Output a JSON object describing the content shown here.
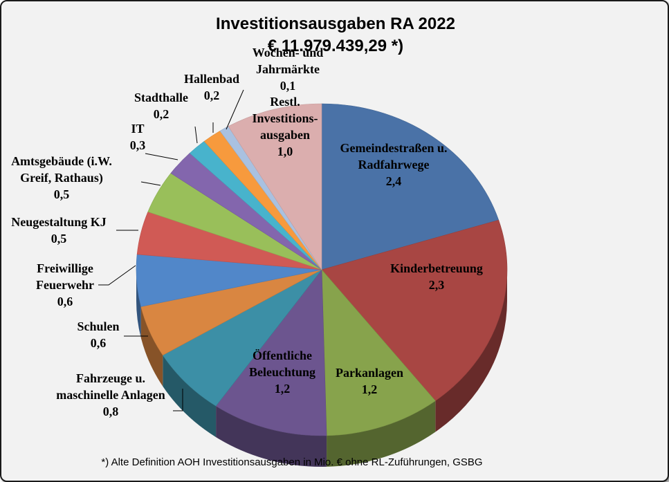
{
  "chart_data": {
    "type": "pie",
    "title": "Investitionsausgaben RA 2022",
    "subtitle": "€ 11.979.439,29 *)",
    "footnote": "*) Alte Definition AOH Investitionsausgaben in Mio. € ohne RL-Zuführungen, GSBG",
    "style": "3d",
    "slices": [
      {
        "label": [
          "Gemeindestraßen u.",
          "Radfahrwege"
        ],
        "value": 2.4,
        "value_label": "2,4",
        "color": "#4a72a7"
      },
      {
        "label": [
          "Kinderbetreuung"
        ],
        "value": 2.3,
        "value_label": "2,3",
        "color": "#a84643"
      },
      {
        "label": [
          "Parkanlagen"
        ],
        "value": 1.2,
        "value_label": "1,2",
        "color": "#87a34c"
      },
      {
        "label": [
          "Öffentliche",
          "Beleuchtung"
        ],
        "value": 1.2,
        "value_label": "1,2",
        "color": "#6c558f"
      },
      {
        "label": [
          "Fahrzeuge u.",
          "maschinelle Anlagen"
        ],
        "value": 0.8,
        "value_label": "0,8",
        "color": "#3c8fa6"
      },
      {
        "label": [
          "Schulen"
        ],
        "value": 0.6,
        "value_label": "0,6",
        "color": "#d98641"
      },
      {
        "label": [
          "Freiwillige",
          "Feuerwehr"
        ],
        "value": 0.6,
        "value_label": "0,6",
        "color": "#5187c9"
      },
      {
        "label": [
          "Neugestaltung KJ"
        ],
        "value": 0.5,
        "value_label": "0,5",
        "color": "#d05a55"
      },
      {
        "label": [
          "Amtsgebäude (i.W.",
          "Greif, Rathaus)"
        ],
        "value": 0.5,
        "value_label": "0,5",
        "color": "#99bf5a"
      },
      {
        "label": [
          "IT"
        ],
        "value": 0.3,
        "value_label": "0,3",
        "color": "#8366ad"
      },
      {
        "label": [
          "Stadthalle"
        ],
        "value": 0.2,
        "value_label": "0,2",
        "color": "#48b3cc"
      },
      {
        "label": [
          "Hallenbad"
        ],
        "value": 0.2,
        "value_label": "0,2",
        "color": "#f79a3d"
      },
      {
        "label": [
          "Wochen- und",
          "Jahrmärkte"
        ],
        "value": 0.1,
        "value_label": "0,1",
        "color": "#a9c1e0"
      },
      {
        "label": [
          "Restl.",
          "Investitions-",
          "ausgaben"
        ],
        "value": 1.0,
        "value_label": "1,0",
        "color": "#dbaeae"
      }
    ]
  }
}
